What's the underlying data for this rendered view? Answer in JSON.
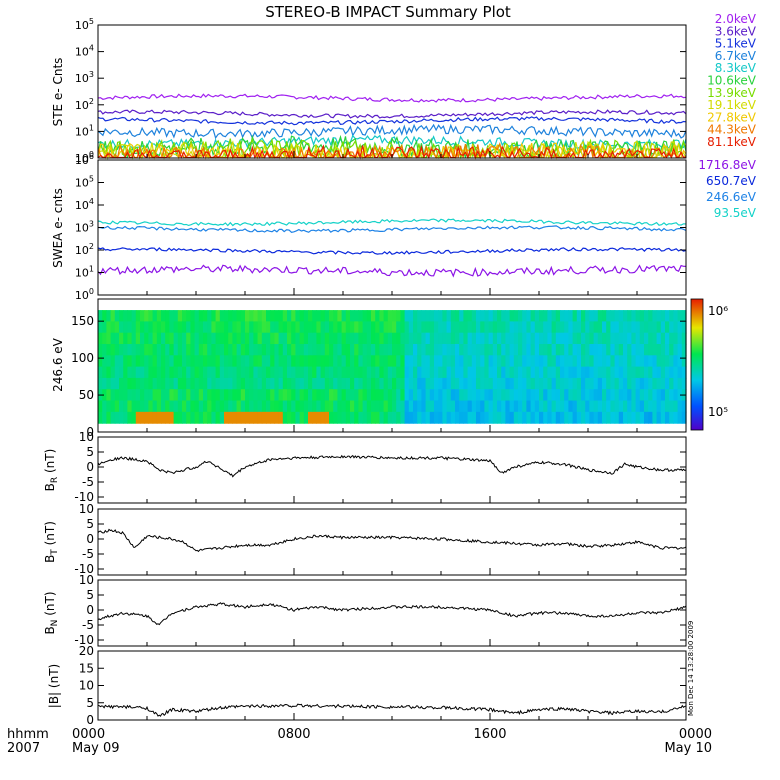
{
  "title": "STEREO-B IMPACT Summary Plot",
  "timestamp": "Mon Dec 14 13:28:00 2009",
  "time_axis": {
    "corner_top": "hhmm",
    "corner_bottom": "2007",
    "ticks": [
      {
        "hour": 0,
        "top": "0000",
        "bottom": "May 09"
      },
      {
        "hour": 8,
        "top": "0800",
        "bottom": ""
      },
      {
        "hour": 16,
        "top": "1600",
        "bottom": ""
      },
      {
        "hour": 24,
        "top": "0000",
        "bottom": "May 10"
      }
    ],
    "range_hours": [
      0,
      24
    ]
  },
  "chart_data": [
    {
      "type": "line",
      "ylabel": "STE e- Cnts",
      "yscale": "log",
      "ylim_exp": [
        0,
        5
      ],
      "tick_exponents": [
        0,
        1,
        2,
        3,
        4,
        5
      ],
      "series": [
        {
          "name": "2.0keV",
          "color": "#a020f0",
          "level": 180
        },
        {
          "name": "3.6keV",
          "color": "#5a1ec8",
          "level": 45
        },
        {
          "name": "5.1keV",
          "color": "#1432dc",
          "level": 25
        },
        {
          "name": "6.7keV",
          "color": "#1e82dc",
          "level": 10
        },
        {
          "name": "8.3keV",
          "color": "#14c8c8",
          "level": 4
        },
        {
          "name": "10.6keV",
          "color": "#28d23c",
          "level": 2.5
        },
        {
          "name": "13.9keV",
          "color": "#78dc00",
          "level": 2
        },
        {
          "name": "19.1keV",
          "color": "#d2dc00",
          "level": 1.6
        },
        {
          "name": "27.8keV",
          "color": "#f0c800",
          "level": 1.4
        },
        {
          "name": "44.3keV",
          "color": "#f07800",
          "level": 1.3
        },
        {
          "name": "81.1keV",
          "color": "#e61e00",
          "level": 1.2
        }
      ]
    },
    {
      "type": "line",
      "ylabel": "SWEA e- cnts",
      "yscale": "log",
      "ylim_exp": [
        0,
        6
      ],
      "tick_exponents": [
        0,
        1,
        2,
        3,
        4,
        5,
        6
      ],
      "series": [
        {
          "name": "1716.8eV",
          "color": "#8c14e6",
          "level": 12
        },
        {
          "name": "650.7eV",
          "color": "#0a28dc",
          "level": 90
        },
        {
          "name": "246.6eV",
          "color": "#1e82e6",
          "level": 850
        },
        {
          "name": "93.5eV",
          "color": "#14d2c8",
          "level": 1700
        }
      ]
    },
    {
      "type": "heatmap",
      "ylabel": "246.6 eV",
      "ylim": [
        0,
        180
      ],
      "yticks": [
        0,
        50,
        100,
        150
      ],
      "colorbar": {
        "labels": [
          "10⁵",
          "10⁶"
        ],
        "min_exp": 4.8,
        "max_exp": 6.0
      }
    },
    {
      "type": "line",
      "ylabel": "B",
      "ylabel_sub": "R",
      "ylabel_unit": " (nT)",
      "ylim": [
        -12,
        10
      ],
      "yticks": [
        10,
        5,
        0,
        -5,
        -10
      ],
      "x": [
        0,
        0.5,
        1,
        2,
        2.5,
        3,
        3.5,
        4,
        4.5,
        5.5,
        6,
        7,
        8,
        9,
        10,
        12,
        14,
        16,
        16.5,
        17,
        18,
        19,
        20,
        21,
        21.5,
        22,
        23,
        24
      ],
      "y": [
        1,
        2.5,
        3,
        2,
        -1,
        -2,
        -1,
        0,
        2,
        -3,
        0,
        2.5,
        3,
        3.2,
        3.5,
        3,
        3,
        2,
        -2,
        0,
        1.5,
        1,
        -1,
        -2,
        1,
        0,
        -1,
        -1
      ]
    },
    {
      "type": "line",
      "ylabel": "B",
      "ylabel_sub": "T",
      "ylabel_unit": " (nT)",
      "ylim": [
        -12,
        10
      ],
      "yticks": [
        10,
        5,
        0,
        -5,
        -10
      ],
      "x": [
        0,
        0.5,
        1,
        1.5,
        2,
        3,
        3.5,
        4,
        5,
        6,
        7,
        8,
        9,
        10,
        12,
        14,
        16,
        18,
        19,
        20,
        21,
        22,
        23,
        24
      ],
      "y": [
        2,
        3,
        2,
        -3,
        1,
        0,
        -1,
        -4,
        -3,
        -2,
        -2,
        0,
        1,
        0.5,
        0.5,
        0,
        -1,
        -2,
        -1.5,
        -2.5,
        -2,
        -1,
        -3,
        -3
      ]
    },
    {
      "type": "line",
      "ylabel": "B",
      "ylabel_sub": "N",
      "ylabel_unit": " (nT)",
      "ylim": [
        -12,
        10
      ],
      "yticks": [
        10,
        5,
        0,
        -5,
        -10
      ],
      "x": [
        0,
        1,
        2,
        2.5,
        3,
        4,
        5,
        6,
        7,
        8,
        9,
        10,
        12,
        14,
        16,
        17,
        18,
        19,
        20,
        21,
        22,
        23,
        24
      ],
      "y": [
        -3,
        -1,
        -2,
        -5,
        -1,
        1,
        2,
        1,
        2,
        0,
        1,
        0,
        1,
        1,
        0,
        -2,
        -1,
        -1,
        -2,
        -2,
        -1,
        -1,
        1
      ]
    },
    {
      "type": "line",
      "ylabel": "|B| (nT)",
      "ylim": [
        0,
        20
      ],
      "yticks": [
        20,
        15,
        10,
        5,
        0
      ],
      "x": [
        0,
        1,
        2,
        2.5,
        3,
        4,
        5,
        6,
        8,
        10,
        12,
        14,
        16,
        17,
        18,
        19,
        20,
        21,
        22,
        23,
        24
      ],
      "y": [
        4,
        3.8,
        3.5,
        1,
        3,
        2.5,
        3.5,
        4,
        4.2,
        4,
        3.8,
        3.6,
        3,
        2,
        3,
        3.3,
        2.5,
        2,
        2.5,
        2.3,
        4
      ]
    }
  ]
}
